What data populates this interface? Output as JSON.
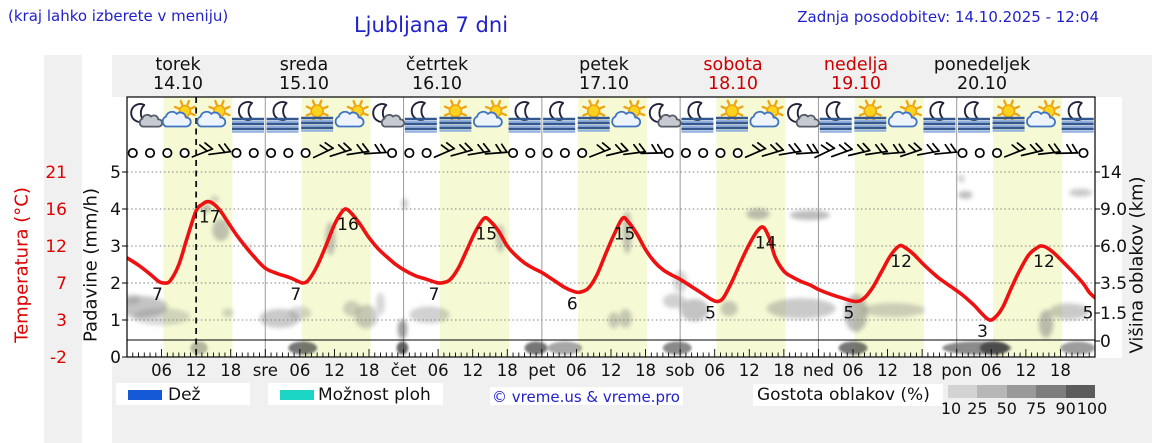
{
  "header": {
    "hint": "(kraj lahko izberete v meniju)",
    "title": "Ljubljana 7 dni",
    "updated": "Zadnja posodobitev: 14.10.2025 - 12:04"
  },
  "days": [
    {
      "name": "torek",
      "date": "14.10",
      "color": "#111111"
    },
    {
      "name": "sreda",
      "date": "15.10",
      "color": "#111111"
    },
    {
      "name": "četrtek",
      "date": "16.10",
      "color": "#111111"
    },
    {
      "name": "petek",
      "date": "17.10",
      "color": "#111111"
    },
    {
      "name": "sobota",
      "date": "18.10",
      "color": "#cc0000"
    },
    {
      "name": "nedelja",
      "date": "19.10",
      "color": "#cc0000"
    },
    {
      "name": "ponedeljek",
      "date": "20.10",
      "color": "#111111"
    }
  ],
  "axes": {
    "temp_label": "Temperatura (°C)",
    "temp_ticks": [
      "21",
      "16",
      "12",
      "7",
      "3",
      "-2"
    ],
    "precip_label": "Padavine (mm/h)",
    "precip_ticks": [
      "5",
      "4",
      "3",
      "2",
      "1",
      "0"
    ],
    "cloud_label": "Višina oblakov (km)",
    "cloud_ticks": [
      "14",
      "9.0",
      "6.0",
      "3.5",
      "1.5",
      "0"
    ],
    "hour_labels": [
      "06",
      "12",
      "18"
    ],
    "midnight_labels": [
      "sre",
      "čet",
      "pet",
      "sob",
      "ned",
      "pon"
    ]
  },
  "legend": {
    "rain": "Dež",
    "showers": "Možnost ploh",
    "copyright": "© vreme.us & vreme.pro",
    "cloud_density": "Gostota oblakov (%)",
    "density_ticks": [
      "10",
      "25",
      "50",
      "75",
      "90",
      "100"
    ],
    "density_colors": [
      "#d3d3d3",
      "#b7b7b7",
      "#999999",
      "#7d7d7d",
      "#5c5c5c"
    ],
    "rain_color": "#1659d6",
    "showers_color": "#1bd6c4"
  },
  "colors": {
    "accent_blue": "#2121cc",
    "temp_red": "#dd0000",
    "weekend_red": "#cc0000",
    "curve_red": "#ee1111",
    "daylight_band": "#f6fad4",
    "cloud_gray": "#7d7d7d",
    "fog_dark": "#3e3e3e"
  },
  "chart_data": {
    "type": "line",
    "title": "Ljubljana 7 dni",
    "x_unit": "hours from 2025-10-14 00:00",
    "x_range": [
      0,
      168
    ],
    "current_time_hour": 12,
    "daylight": {
      "start_hour": 6.3,
      "end_hour": 18.3
    },
    "temp_axis_ticks_c": [
      21,
      16,
      12,
      7,
      3,
      -2
    ],
    "precip_axis_ticks_mm": [
      5,
      4,
      3,
      2,
      1,
      0
    ],
    "cloud_axis_ticks_km": [
      14,
      9.0,
      6.0,
      3.5,
      1.5,
      0
    ],
    "series": [
      {
        "name": "Temperatura",
        "points": [
          [
            0,
            10.4
          ],
          [
            2,
            9.4
          ],
          [
            4,
            8.2
          ],
          [
            5.5,
            7.2
          ],
          [
            6.5,
            7
          ],
          [
            7.5,
            7.3
          ],
          [
            9,
            9.5
          ],
          [
            10.5,
            13
          ],
          [
            12,
            15.8
          ],
          [
            13,
            16.6
          ],
          [
            14,
            17
          ],
          [
            15,
            16.7
          ],
          [
            16.2,
            15.8
          ],
          [
            17.5,
            14.6
          ],
          [
            19,
            13.2
          ],
          [
            20.5,
            12
          ],
          [
            22,
            10.6
          ],
          [
            24,
            9
          ],
          [
            26,
            8.3
          ],
          [
            28,
            7.8
          ],
          [
            29.5,
            7.3
          ],
          [
            30.5,
            7
          ],
          [
            31.5,
            7.4
          ],
          [
            33,
            9.3
          ],
          [
            34.5,
            12
          ],
          [
            36,
            14.3
          ],
          [
            37.2,
            15.6
          ],
          [
            38,
            16
          ],
          [
            39,
            15.5
          ],
          [
            40.5,
            14.3
          ],
          [
            42,
            12.9
          ],
          [
            43.5,
            11.7
          ],
          [
            45,
            10.6
          ],
          [
            46.5,
            9.6
          ],
          [
            48,
            8.8
          ],
          [
            50,
            8
          ],
          [
            52,
            7.5
          ],
          [
            53.5,
            7.1
          ],
          [
            54.5,
            7
          ],
          [
            56,
            7.4
          ],
          [
            57.5,
            9
          ],
          [
            59,
            11.5
          ],
          [
            60.5,
            13.6
          ],
          [
            62,
            15
          ],
          [
            63,
            14.7
          ],
          [
            64.5,
            13.6
          ],
          [
            66,
            12
          ],
          [
            67.5,
            10.7
          ],
          [
            69,
            9.7
          ],
          [
            70.5,
            9
          ],
          [
            72,
            8.4
          ],
          [
            74,
            7.4
          ],
          [
            76,
            6.5
          ],
          [
            77.5,
            6.1
          ],
          [
            78.5,
            6
          ],
          [
            80,
            6.4
          ],
          [
            81.5,
            8
          ],
          [
            83,
            10.8
          ],
          [
            84.5,
            13.2
          ],
          [
            86,
            15
          ],
          [
            87,
            14.6
          ],
          [
            88.5,
            13.3
          ],
          [
            90,
            11.5
          ],
          [
            91.5,
            9.9
          ],
          [
            93,
            8.8
          ],
          [
            94.5,
            8.1
          ],
          [
            96,
            7.5
          ],
          [
            98,
            6.6
          ],
          [
            100,
            5.8
          ],
          [
            101.5,
            5.2
          ],
          [
            102.5,
            5
          ],
          [
            103.5,
            5.4
          ],
          [
            105,
            7.2
          ],
          [
            106.5,
            9.8
          ],
          [
            108,
            12.2
          ],
          [
            109.5,
            13.7
          ],
          [
            110.5,
            14
          ],
          [
            111.5,
            12.8
          ],
          [
            112.5,
            10.5
          ],
          [
            114,
            8.6
          ],
          [
            115.5,
            7.8
          ],
          [
            117,
            7.2
          ],
          [
            118.5,
            6.8
          ],
          [
            120,
            6.3
          ],
          [
            122,
            5.8
          ],
          [
            124,
            5.4
          ],
          [
            126.5,
            5
          ],
          [
            128,
            5.4
          ],
          [
            129.5,
            6.6
          ],
          [
            131,
            8.6
          ],
          [
            132.5,
            10.7
          ],
          [
            134,
            12
          ],
          [
            135,
            11.8
          ],
          [
            136.5,
            10.9
          ],
          [
            138,
            9.7
          ],
          [
            139.5,
            8.6
          ],
          [
            141,
            7.6
          ],
          [
            143,
            6.6
          ],
          [
            145,
            5.7
          ],
          [
            147,
            4.6
          ],
          [
            148.5,
            3.6
          ],
          [
            149.7,
            3
          ],
          [
            150.7,
            3.3
          ],
          [
            152,
            4.4
          ],
          [
            153.5,
            6.5
          ],
          [
            155,
            8.8
          ],
          [
            156.5,
            10.8
          ],
          [
            158,
            11.8
          ],
          [
            158.8,
            12
          ],
          [
            160,
            11.6
          ],
          [
            161.5,
            10.6
          ],
          [
            163,
            9.4
          ],
          [
            164.5,
            8.2
          ],
          [
            166,
            6.9
          ],
          [
            167,
            6
          ],
          [
            168,
            5.4
          ]
        ]
      }
    ],
    "value_labels": [
      [
        6.5,
        7,
        "min"
      ],
      [
        14,
        17,
        "max"
      ],
      [
        30.5,
        7,
        "min"
      ],
      [
        38,
        16,
        "max"
      ],
      [
        54.5,
        7,
        "min"
      ],
      [
        62,
        15,
        "max"
      ],
      [
        78.5,
        6,
        "min"
      ],
      [
        86,
        15,
        "max"
      ],
      [
        102.5,
        5,
        "min"
      ],
      [
        110.5,
        14,
        "max"
      ],
      [
        126.5,
        5,
        "min"
      ],
      [
        134,
        12,
        "max"
      ],
      [
        149.7,
        3,
        "min"
      ],
      [
        158.8,
        12,
        "max"
      ],
      [
        168,
        5,
        "min"
      ]
    ],
    "weather_icons": [
      [
        3,
        "moon-cloud"
      ],
      [
        9,
        "sun-cloud"
      ],
      [
        15,
        "sun-cloud"
      ],
      [
        21,
        "moon-fog"
      ],
      [
        27,
        "moon-fog"
      ],
      [
        33,
        "sun-fog"
      ],
      [
        39,
        "sun-cloud"
      ],
      [
        45,
        "moon-cloud"
      ],
      [
        51,
        "moon-fog"
      ],
      [
        57,
        "sun-fog"
      ],
      [
        63,
        "sun-cloud"
      ],
      [
        69,
        "moon-fog"
      ],
      [
        75,
        "moon-fog"
      ],
      [
        81,
        "sun-fog"
      ],
      [
        87,
        "sun-cloud"
      ],
      [
        93,
        "moon-cloud"
      ],
      [
        99,
        "moon-fog"
      ],
      [
        105,
        "sun-fog"
      ],
      [
        111,
        "sun-cloud"
      ],
      [
        117,
        "moon-cloud"
      ],
      [
        123,
        "moon-fog"
      ],
      [
        129,
        "sun-fog"
      ],
      [
        135,
        "sun-cloud"
      ],
      [
        141,
        "moon-fog"
      ],
      [
        147,
        "moon-fog"
      ],
      [
        153,
        "sun-fog"
      ],
      [
        159,
        "sun-cloud"
      ],
      [
        165,
        "moon-fog"
      ]
    ],
    "wind_symbols": [
      [
        1,
        "c",
        0
      ],
      [
        4,
        "c",
        0
      ],
      [
        7,
        "c",
        0
      ],
      [
        10,
        "c",
        0
      ],
      [
        13,
        "b",
        -8
      ],
      [
        16,
        "b",
        6
      ],
      [
        19,
        "c",
        0
      ],
      [
        22,
        "c",
        0
      ],
      [
        25,
        "c",
        0
      ],
      [
        28,
        "c",
        0
      ],
      [
        31,
        "c",
        0
      ],
      [
        34,
        "b",
        -12
      ],
      [
        37,
        "b",
        -4
      ],
      [
        40,
        "b",
        5
      ],
      [
        43,
        "b",
        10
      ],
      [
        46,
        "c",
        0
      ],
      [
        49,
        "c",
        0
      ],
      [
        52,
        "c",
        0
      ],
      [
        55,
        "b",
        -10
      ],
      [
        58,
        "b",
        -2
      ],
      [
        61,
        "b",
        4
      ],
      [
        64,
        "b",
        9
      ],
      [
        67,
        "c",
        0
      ],
      [
        70,
        "c",
        0
      ],
      [
        73,
        "c",
        0
      ],
      [
        76,
        "c",
        0
      ],
      [
        79,
        "c",
        0
      ],
      [
        82,
        "b",
        -8
      ],
      [
        85,
        "b",
        0
      ],
      [
        88,
        "b",
        6
      ],
      [
        91,
        "b",
        12
      ],
      [
        94,
        "c",
        0
      ],
      [
        97,
        "c",
        0
      ],
      [
        100,
        "c",
        0
      ],
      [
        103,
        "c",
        0
      ],
      [
        106,
        "c",
        0
      ],
      [
        109,
        "b",
        -10
      ],
      [
        112,
        "b",
        -3
      ],
      [
        115,
        "b",
        4
      ],
      [
        118,
        "b",
        10
      ],
      [
        121,
        "b",
        -12
      ],
      [
        124,
        "b",
        -6
      ],
      [
        127,
        "b",
        0
      ],
      [
        130,
        "b",
        5
      ],
      [
        133,
        "b",
        9
      ],
      [
        136,
        "b",
        -5
      ],
      [
        139,
        "b",
        3
      ],
      [
        142,
        "b",
        8
      ],
      [
        145,
        "c",
        0
      ],
      [
        148,
        "c",
        0
      ],
      [
        151,
        "c",
        0
      ],
      [
        154,
        "b",
        -8
      ],
      [
        157,
        "b",
        0
      ],
      [
        160,
        "b",
        7
      ],
      [
        163,
        "b",
        12
      ],
      [
        166,
        "c",
        0
      ]
    ],
    "cloud_blobs_h_km_w_hkm_op": [
      [
        2.5,
        1.9,
        9,
        1.4,
        0.45
      ],
      [
        6,
        1.3,
        10,
        1.0,
        0.3
      ],
      [
        0.8,
        2.4,
        3,
        0.7,
        0.3
      ],
      [
        13.8,
        9.1,
        1.6,
        1.0,
        0.5
      ],
      [
        16.3,
        7.3,
        3,
        1.8,
        0.45
      ],
      [
        15.2,
        10.3,
        1.6,
        0.8,
        0.3
      ],
      [
        21,
        5.9,
        1,
        0.5,
        0.3
      ],
      [
        17.5,
        1.5,
        2,
        0.6,
        0.3
      ],
      [
        26.5,
        1.2,
        7,
        1.1,
        0.4
      ],
      [
        30,
        1.5,
        4,
        0.8,
        0.3
      ],
      [
        35.3,
        6.6,
        1.8,
        2.6,
        0.45
      ],
      [
        39,
        1.8,
        3,
        1.0,
        0.35
      ],
      [
        41.5,
        1.3,
        4,
        1.4,
        0.4
      ],
      [
        44,
        2.1,
        1.5,
        1.5,
        0.3
      ],
      [
        47.8,
        0.6,
        1.6,
        1.1,
        0.75
      ],
      [
        48.2,
        9.7,
        1.1,
        1.5,
        0.4
      ],
      [
        52.5,
        1.4,
        7,
        1.0,
        0.35
      ],
      [
        64.8,
        6.6,
        1.6,
        2.2,
        0.4
      ],
      [
        84.5,
        1.1,
        2,
        0.9,
        0.4
      ],
      [
        86.5,
        1.2,
        2.2,
        1.1,
        0.4
      ],
      [
        86.8,
        7.1,
        1.6,
        3.4,
        0.45
      ],
      [
        95,
        2.3,
        4,
        1.0,
        0.35
      ],
      [
        98.5,
        1.7,
        5,
        1.4,
        0.45
      ],
      [
        96,
        3.6,
        2.5,
        1.5,
        0.3
      ],
      [
        104.5,
        1.8,
        3,
        1.0,
        0.4
      ],
      [
        109.5,
        8.6,
        4,
        0.9,
        0.5
      ],
      [
        118.5,
        8.5,
        7,
        0.8,
        0.5
      ],
      [
        117,
        1.8,
        12,
        1.3,
        0.4
      ],
      [
        126.5,
        1.5,
        4,
        2.3,
        0.5
      ],
      [
        133,
        1.7,
        11,
        0.9,
        0.35
      ],
      [
        145.5,
        10.9,
        2.5,
        1.0,
        0.5
      ],
      [
        144.8,
        13.1,
        1.2,
        0.5,
        0.35
      ],
      [
        159.5,
        0.9,
        2.5,
        1.6,
        0.5
      ],
      [
        163.5,
        1.6,
        7,
        1.0,
        0.4
      ],
      [
        165.5,
        11.2,
        4,
        1.1,
        0.4
      ]
    ],
    "ground_fog_h_w_op": [
      [
        12.5,
        3,
        0.35
      ],
      [
        30.5,
        5,
        0.7
      ],
      [
        47.8,
        2,
        0.8
      ],
      [
        71,
        4,
        0.7
      ],
      [
        76,
        6,
        0.45
      ],
      [
        95.5,
        5,
        0.6
      ],
      [
        126,
        5,
        0.7
      ],
      [
        147.5,
        12,
        0.6
      ],
      [
        150.5,
        5,
        0.8
      ],
      [
        165,
        6,
        0.5
      ]
    ]
  }
}
